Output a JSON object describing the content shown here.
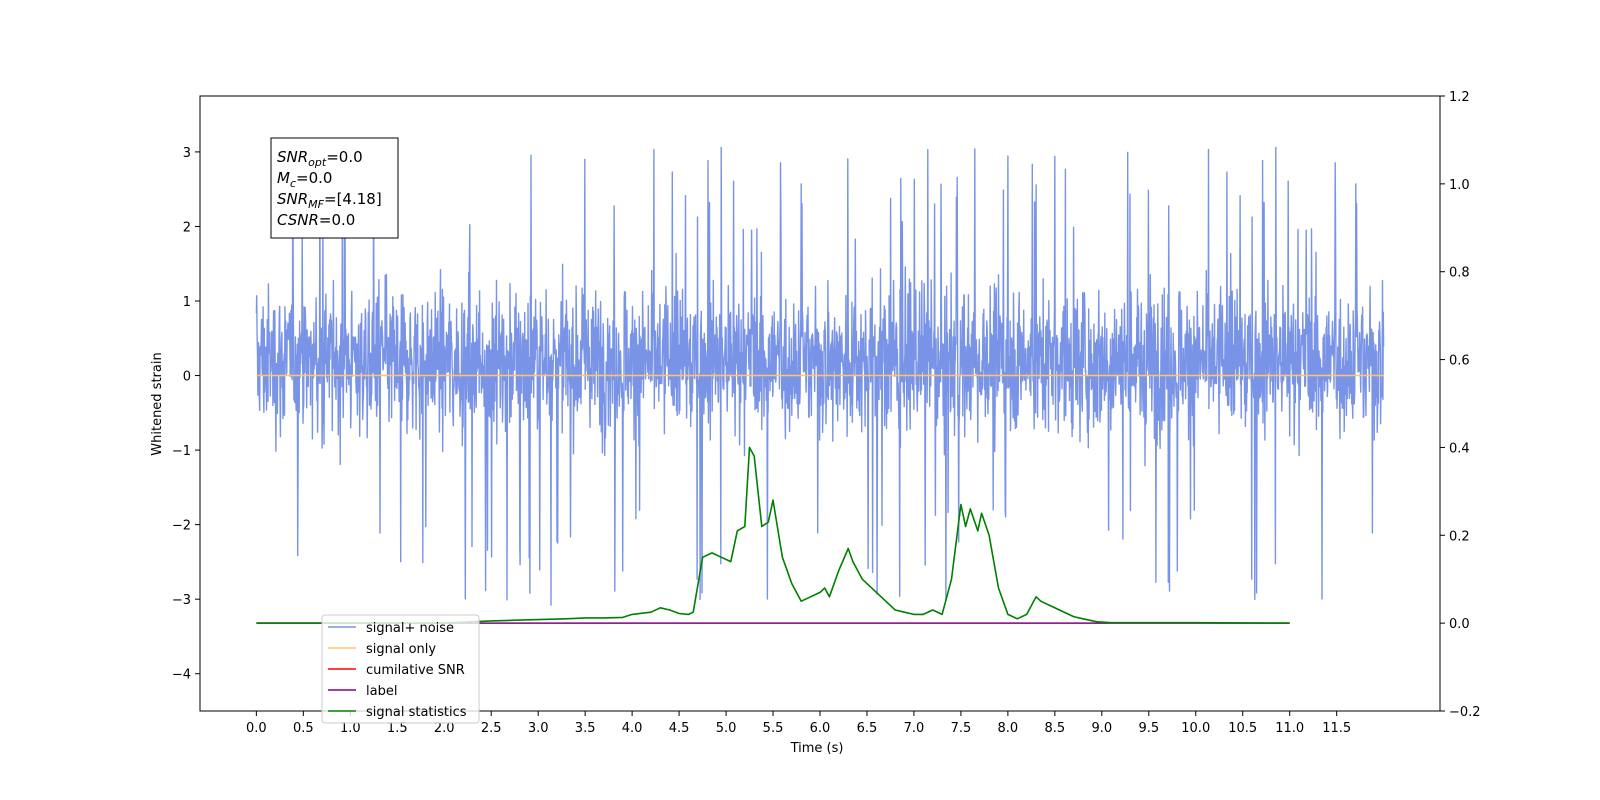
{
  "chart_data": {
    "type": "line",
    "xlabel": "Time (s)",
    "ylabel": "Whitened strain",
    "x_ticks": [
      "0.0",
      "0.5",
      "1.0",
      "1.5",
      "2.0",
      "2.5",
      "3.0",
      "3.5",
      "4.0",
      "4.5",
      "5.0",
      "5.5",
      "6.0",
      "6.5",
      "7.0",
      "7.5",
      "8.0",
      "8.5",
      "9.0",
      "9.5",
      "10.0",
      "10.5",
      "11.0",
      "11.5"
    ],
    "xlim": [
      -0.6,
      12.6
    ],
    "ylim_left": [
      -4.5,
      3.75
    ],
    "yticks_left": [
      -4,
      -3,
      -2,
      -1,
      0,
      1,
      2,
      3
    ],
    "ylim_right": [
      -0.2,
      1.2
    ],
    "yticks_right": [
      "−0.2",
      "0.0",
      "0.2",
      "0.4",
      "0.6",
      "0.8",
      "1.0",
      "1.2"
    ],
    "annotation": {
      "lines": [
        {
          "base": "SNR",
          "sub": "opt",
          "rest": "=0.0"
        },
        {
          "base": "M",
          "sub": "c",
          "rest": "=0.0"
        },
        {
          "base": "SNR",
          "sub": "MF",
          "rest": "=[4.18]"
        },
        {
          "base": "CSNR",
          "sub": "",
          "rest": "=0.0"
        }
      ]
    },
    "legend": {
      "placement": "lower-left",
      "items": [
        {
          "label": "signal+ noise",
          "color": "#7994e6"
        },
        {
          "label": "signal only",
          "color": "#ffc46e"
        },
        {
          "label": "cumilative SNR",
          "color": "#ff0000"
        },
        {
          "label": "label",
          "color": "#800080"
        },
        {
          "label": "signal statistics",
          "color": "#008000"
        }
      ]
    },
    "series": [
      {
        "name": "signal+ noise",
        "axis": "left",
        "color": "#7994e6",
        "kind": "noise",
        "x_range": [
          0,
          12
        ],
        "typical_range": [
          -1.8,
          2.2
        ],
        "extreme_range": [
          -3.95,
          3.38
        ]
      },
      {
        "name": "signal only",
        "axis": "left",
        "color": "#ffc46e",
        "x": [
          0,
          12
        ],
        "y": [
          0,
          0
        ]
      },
      {
        "name": "label",
        "axis": "right",
        "color": "#800080",
        "x": [
          0,
          11.0
        ],
        "y": [
          0,
          0
        ]
      },
      {
        "name": "signal statistics",
        "axis": "right",
        "color": "#008000",
        "x": [
          0.0,
          1.0,
          2.0,
          2.5,
          2.8,
          3.0,
          3.3,
          3.5,
          3.7,
          3.9,
          4.0,
          4.2,
          4.3,
          4.4,
          4.5,
          4.6,
          4.65,
          4.75,
          4.85,
          4.95,
          5.05,
          5.12,
          5.2,
          5.25,
          5.3,
          5.38,
          5.45,
          5.5,
          5.6,
          5.7,
          5.8,
          5.9,
          6.0,
          6.05,
          6.1,
          6.2,
          6.3,
          6.35,
          6.45,
          6.6,
          6.7,
          6.8,
          6.9,
          7.0,
          7.1,
          7.2,
          7.3,
          7.4,
          7.5,
          7.55,
          7.6,
          7.68,
          7.72,
          7.8,
          7.9,
          8.0,
          8.1,
          8.2,
          8.3,
          8.35,
          8.45,
          8.55,
          8.7,
          8.8,
          8.95,
          9.1,
          9.5,
          10.0,
          11.0,
          11.0
        ],
        "y": [
          0.0,
          0.0,
          0.0,
          0.005,
          0.007,
          0.008,
          0.01,
          0.012,
          0.012,
          0.013,
          0.02,
          0.025,
          0.035,
          0.03,
          0.022,
          0.02,
          0.025,
          0.15,
          0.16,
          0.15,
          0.14,
          0.21,
          0.22,
          0.4,
          0.38,
          0.22,
          0.23,
          0.28,
          0.15,
          0.09,
          0.05,
          0.06,
          0.07,
          0.08,
          0.06,
          0.12,
          0.17,
          0.14,
          0.1,
          0.07,
          0.05,
          0.03,
          0.025,
          0.02,
          0.02,
          0.03,
          0.02,
          0.1,
          0.27,
          0.22,
          0.26,
          0.21,
          0.25,
          0.2,
          0.08,
          0.02,
          0.01,
          0.02,
          0.06,
          0.05,
          0.04,
          0.03,
          0.015,
          0.01,
          0.003,
          0.001,
          0.001,
          0.001,
          0.0,
          0.0
        ]
      }
    ]
  }
}
